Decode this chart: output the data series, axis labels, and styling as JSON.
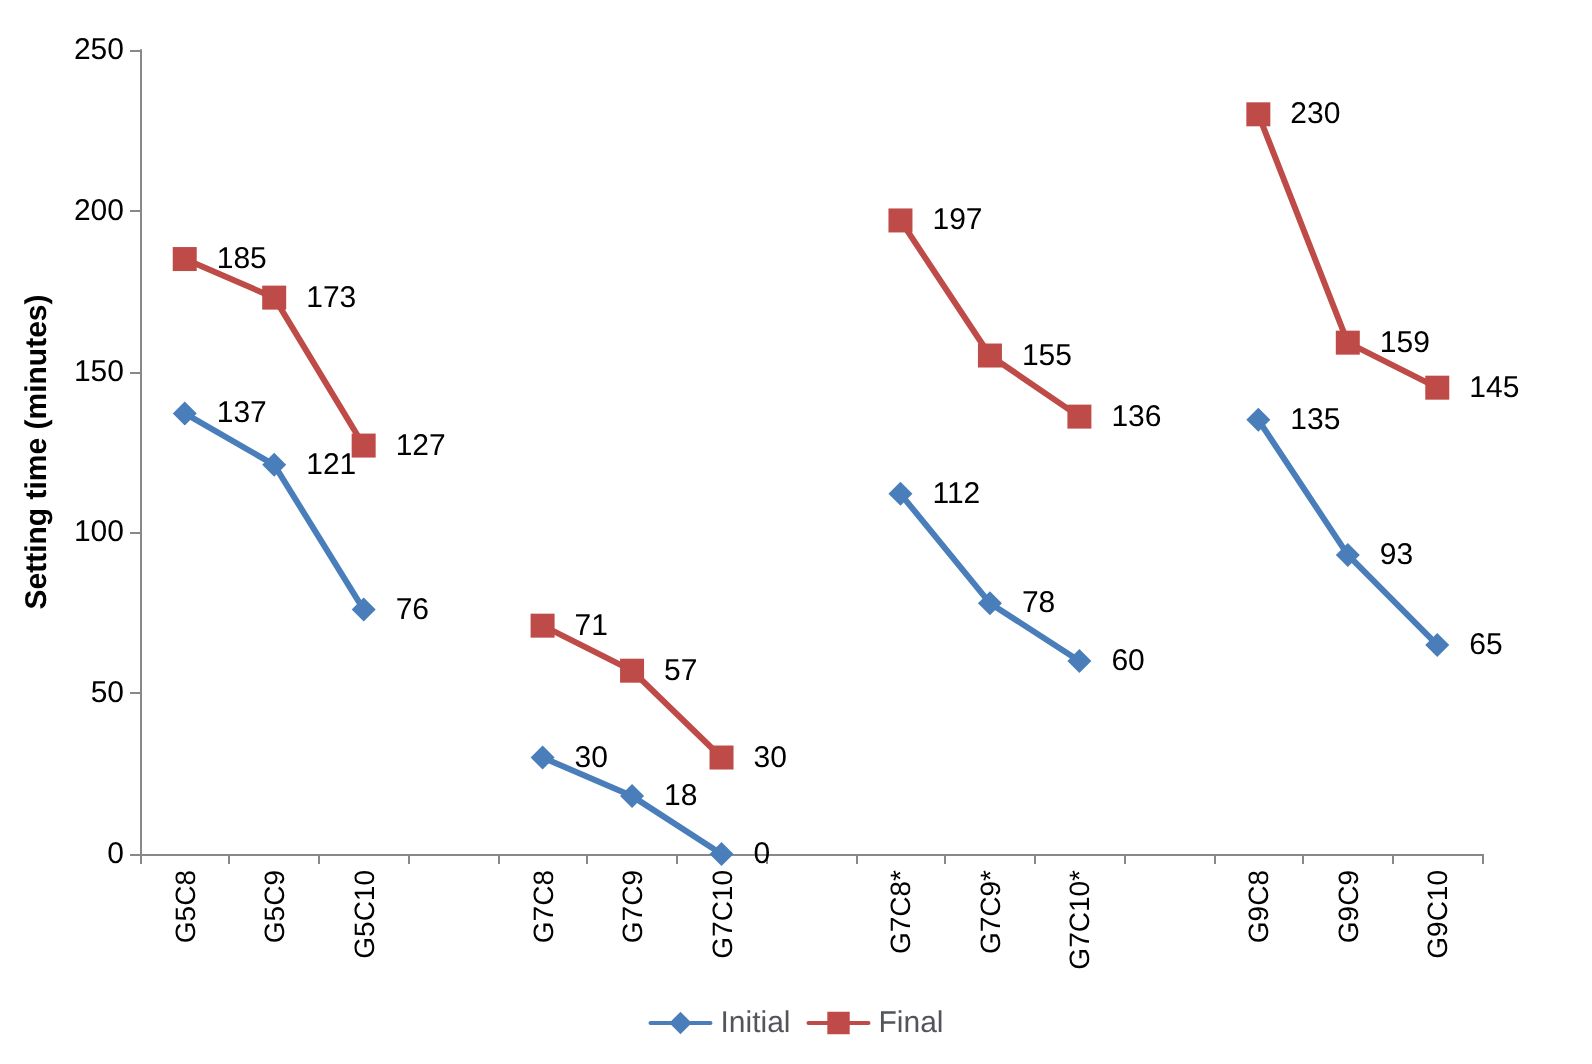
{
  "chart_data": {
    "type": "line",
    "ylabel": "Setting time (minutes)",
    "categories": [
      "G5C8",
      "G5C9",
      "G5C10",
      null,
      "G7C8",
      "G7C9",
      "G7C10",
      null,
      "G7C8*",
      "G7C9*",
      "G7C10*",
      null,
      "G9C8",
      "G9C9",
      "G9C10"
    ],
    "series": [
      {
        "name": "Initial",
        "color": "#4a7ebb",
        "marker": "diamond",
        "values": [
          137,
          121,
          76,
          null,
          30,
          18,
          0,
          null,
          112,
          78,
          60,
          null,
          135,
          93,
          65
        ]
      },
      {
        "name": "Final",
        "color": "#be4b48",
        "marker": "square",
        "values": [
          185,
          173,
          127,
          null,
          71,
          57,
          30,
          null,
          197,
          155,
          136,
          null,
          230,
          159,
          145
        ]
      }
    ],
    "ylim": [
      0,
      250
    ],
    "yticks": [
      0,
      50,
      100,
      150,
      200,
      250
    ],
    "grid": false,
    "legend": "bottom",
    "data_labels": true
  }
}
